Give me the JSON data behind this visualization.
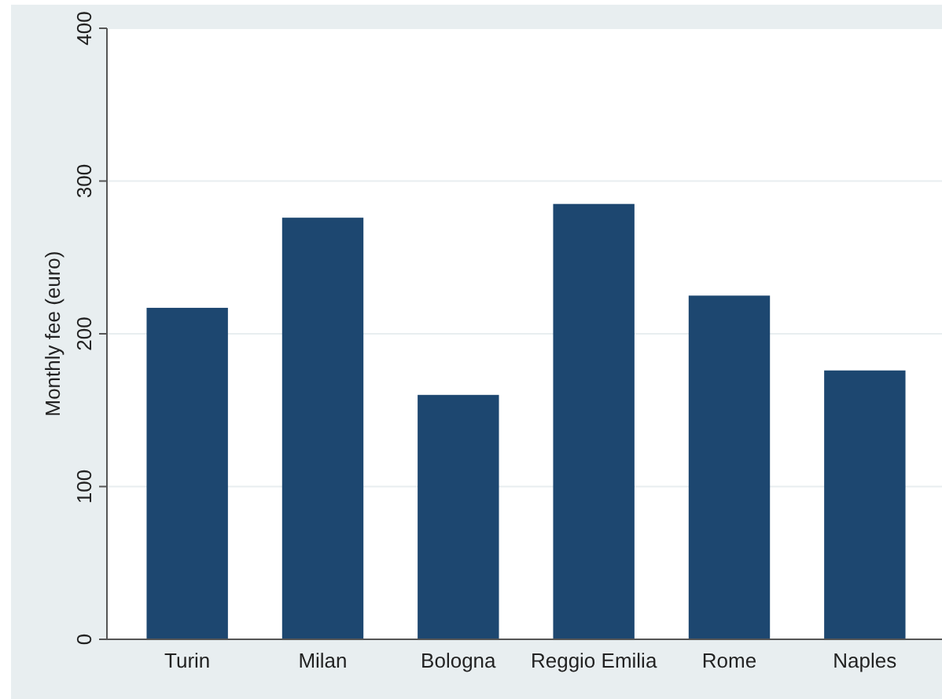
{
  "chart_data": {
    "type": "bar",
    "ylabel": "Monthly fee (euro)",
    "categories": [
      "Turin",
      "Milan",
      "Bologna",
      "Reggio Emilia",
      "Rome",
      "Naples"
    ],
    "values": [
      217,
      276,
      160,
      285,
      225,
      176
    ],
    "color": "#1d4770",
    "ylim": [
      0,
      400
    ],
    "yticks": [
      0,
      100,
      200,
      300,
      400
    ],
    "grid": "y"
  }
}
